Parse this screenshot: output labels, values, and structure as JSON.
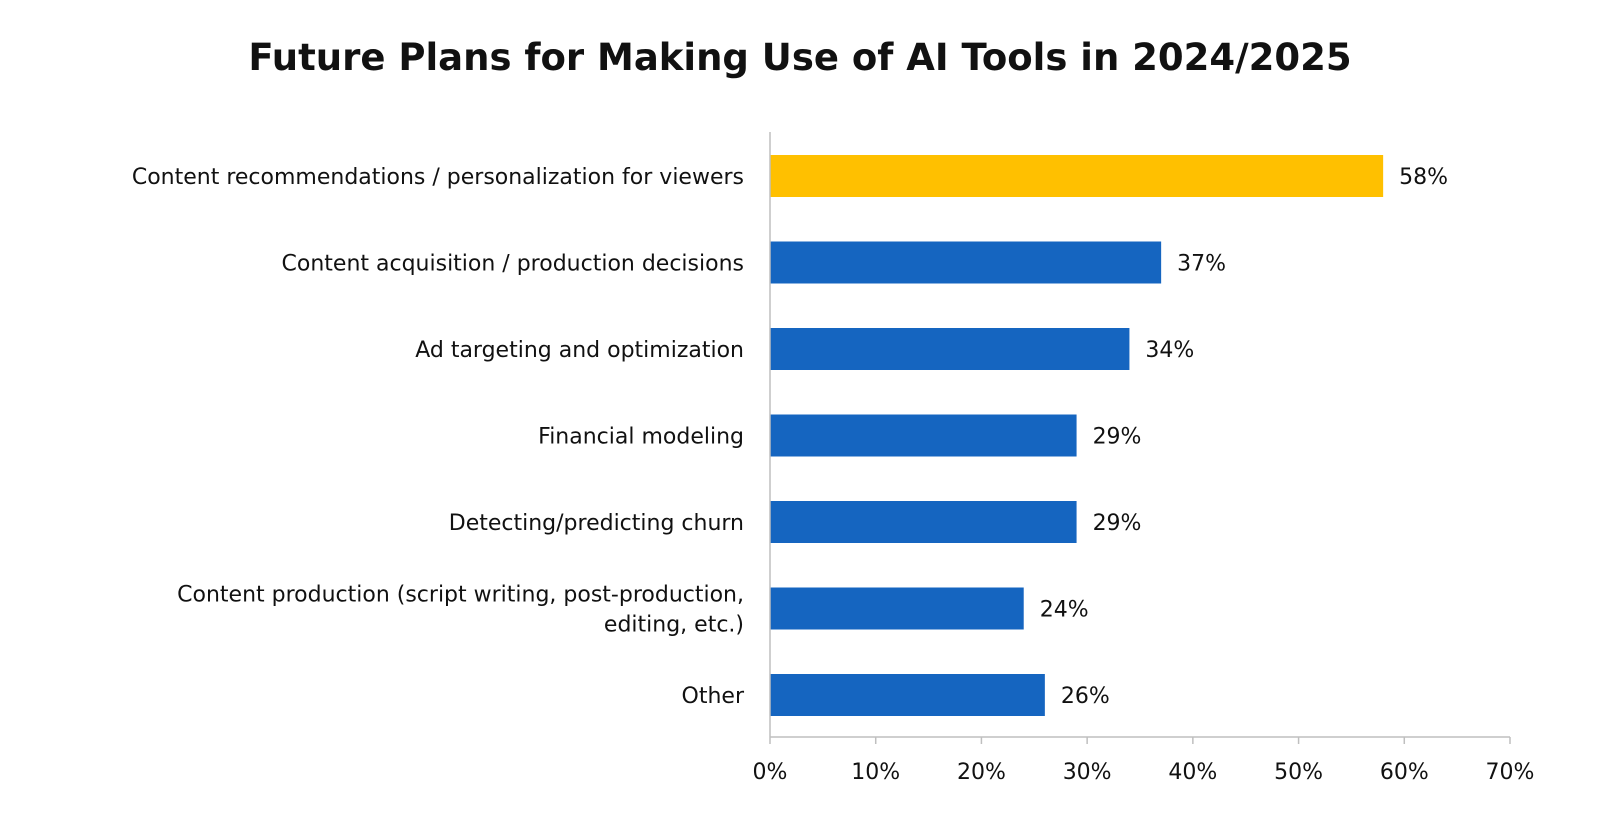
{
  "chart_data": {
    "type": "bar",
    "orientation": "horizontal",
    "title": "Future Plans for Making Use of AI Tools in 2024/2025",
    "categories": [
      [
        "Content recommendations / personalization for viewers"
      ],
      [
        "Content acquisition / production decisions"
      ],
      [
        "Ad targeting and optimization"
      ],
      [
        "Financial modeling"
      ],
      [
        "Detecting/predicting churn"
      ],
      [
        "Content production (script writing, post-production,",
        "editing, etc.)"
      ],
      [
        "Other"
      ]
    ],
    "values": [
      58,
      37,
      34,
      29,
      29,
      24,
      26
    ],
    "value_labels": [
      "58%",
      "37%",
      "34%",
      "29%",
      "29%",
      "24%",
      "26%"
    ],
    "bar_colors": [
      "#FFC000",
      "#1565C0",
      "#1565C0",
      "#1565C0",
      "#1565C0",
      "#1565C0",
      "#1565C0"
    ],
    "xlim": [
      0,
      70
    ],
    "x_ticks": [
      0,
      10,
      20,
      30,
      40,
      50,
      60,
      70
    ],
    "x_tick_labels": [
      "0%",
      "10%",
      "20%",
      "30%",
      "40%",
      "50%",
      "60%",
      "70%"
    ],
    "xlabel": "",
    "ylabel": "",
    "grid": false,
    "legend": "none"
  }
}
